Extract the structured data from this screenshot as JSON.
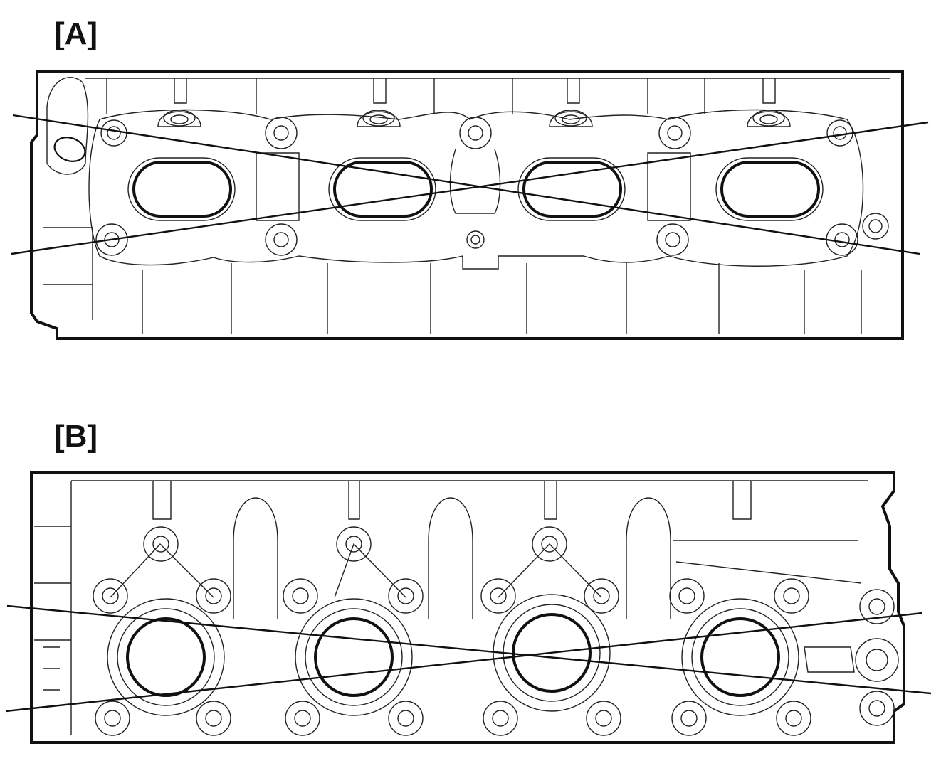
{
  "panels": [
    {
      "id": "A",
      "label": "[A]"
    },
    {
      "id": "B",
      "label": "[B]"
    }
  ],
  "colors": {
    "ink": "#111111",
    "background": "#ffffff"
  }
}
